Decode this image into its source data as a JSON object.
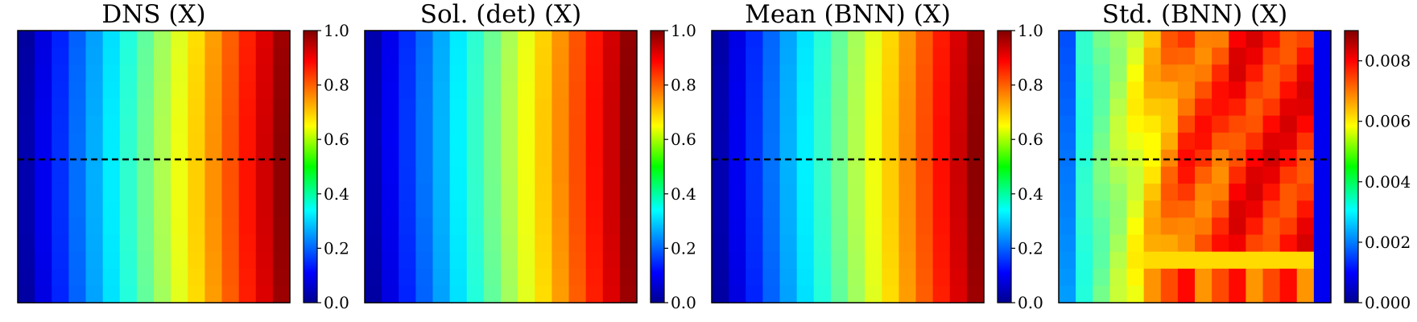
{
  "figure": {
    "background": "#ffffff",
    "colormap": "jet",
    "dashed_line_color": "#000000"
  },
  "chart_data": [
    {
      "type": "heatmap",
      "title": "DNS (X)",
      "field": "dns",
      "grid": [
        16,
        16
      ],
      "colorbar": {
        "min": 0.0,
        "max": 1.0,
        "ticks": [
          "0.0",
          "0.2",
          "0.4",
          "0.6",
          "0.8",
          "1.0"
        ]
      },
      "dashed_line": true
    },
    {
      "type": "heatmap",
      "title": "Sol. (det) (X)",
      "field": "det",
      "grid": [
        16,
        16
      ],
      "colorbar": {
        "min": 0.0,
        "max": 1.0,
        "ticks": [
          "0.0",
          "0.2",
          "0.4",
          "0.6",
          "0.8",
          "1.0"
        ]
      },
      "dashed_line": false
    },
    {
      "type": "heatmap",
      "title": "Mean (BNN) (X)",
      "field": "mean",
      "grid": [
        16,
        16
      ],
      "colorbar": {
        "min": 0.0,
        "max": 1.0,
        "ticks": [
          "0.0",
          "0.2",
          "0.4",
          "0.6",
          "0.8",
          "1.0"
        ]
      },
      "dashed_line": true
    },
    {
      "type": "heatmap",
      "title": "Std. (BNN) (X)",
      "field": "std",
      "grid": [
        16,
        16
      ],
      "colorbar": {
        "min": 0.0,
        "max": 0.009,
        "ticks": [
          "0.000",
          "0.002",
          "0.004",
          "0.006",
          "0.008"
        ]
      },
      "dashed_line": true
    }
  ]
}
